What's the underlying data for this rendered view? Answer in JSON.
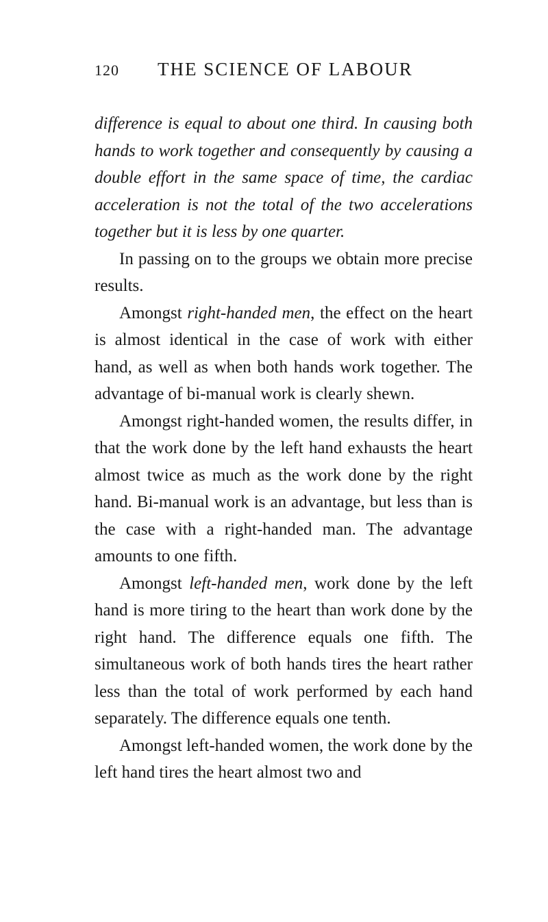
{
  "page_number": "120",
  "title": "THE SCIENCE OF LABOUR",
  "paragraphs": {
    "p1_pre": "difference is equal to about one third. In causing both hands to work together and consequently by causing a double effort in the same space of time, the cardiac acceleration is not the total of the two accelerations together but it is less by one quarter.",
    "p2": "In passing on to the groups we obtain more precise results.",
    "p3_a": "Amongst ",
    "p3_i": "right-handed men",
    "p3_b": ", the effect on the heart is almost identical in the case of work with either hand, as well as when both hands work together. The advantage of bi-manual work is clearly shewn.",
    "p4": "Amongst right-handed women, the results differ, in that the work done by the left hand exhausts the heart almost twice as much as the work done by the right hand. Bi-manual work is an advantage, but less than is the case with a right-handed man. The advantage amounts to one fifth.",
    "p5_a": "Amongst ",
    "p5_i": "left-handed men",
    "p5_b": ", work done by the left hand is more tiring to the heart than work done by the right hand. The difference equals one fifth. The simultaneous work of both hands tires the heart rather less than the total of work performed by each hand separately. The difference equals one tenth.",
    "p6": "Amongst left-handed women, the work done by the left hand tires the heart almost two and"
  }
}
